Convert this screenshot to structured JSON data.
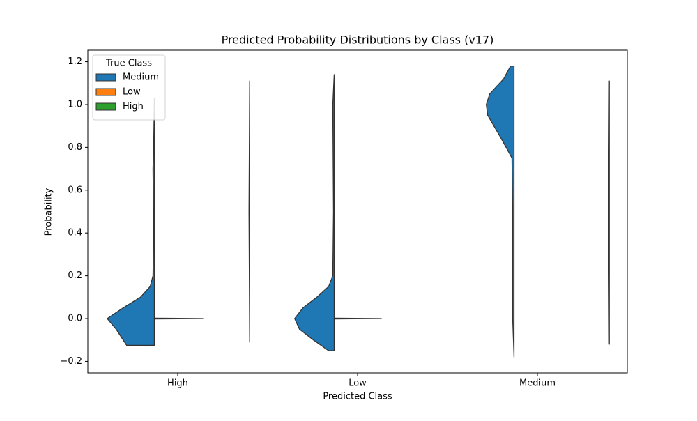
{
  "chart_data": {
    "type": "violin",
    "title": "Predicted Probability Distributions by Class (v17)",
    "xlabel": "Predicted Class",
    "ylabel": "Probability",
    "categories": [
      "High",
      "Low",
      "Medium"
    ],
    "ylim": [
      -0.254,
      1.254
    ],
    "yticks": [
      {
        "value": -0.2,
        "label": "−0.2"
      },
      {
        "value": 0,
        "label": "0.0"
      },
      {
        "value": 0.2,
        "label": "0.2"
      },
      {
        "value": 0.4,
        "label": "0.4"
      },
      {
        "value": 0.6,
        "label": "0.6"
      },
      {
        "value": 0.8,
        "label": "0.8"
      },
      {
        "value": 1,
        "label": "1.0"
      },
      {
        "value": 1.2,
        "label": "1.2"
      }
    ],
    "legend_title": "True Class",
    "legend": "upper left",
    "split": true,
    "series": [
      {
        "name": "Medium",
        "color": "#1f77b4",
        "values": [
          {
            "y": [
              -0.125,
              -0.05,
              0,
              0.05,
              0.1,
              0.15,
              0.2,
              0.4,
              0.7,
              0.8,
              1.03
            ],
            "density": [
              40,
              55,
              68,
              45,
              20,
              6,
              2,
              1,
              2,
              1,
              0
            ]
          },
          {
            "y": [
              -0.15,
              -0.1,
              -0.05,
              0,
              0.05,
              0.1,
              0.15,
              0.2,
              0.5,
              1.0,
              1.14
            ],
            "density": [
              8,
              30,
              50,
              57,
              45,
              25,
              8,
              2,
              1,
              2,
              0
            ]
          },
          {
            "y": [
              -0.18,
              0,
              0.5,
              0.75,
              0.85,
              0.95,
              1.0,
              1.05,
              1.12,
              1.18
            ],
            "density": [
              0,
              2,
              2,
              3,
              20,
              38,
              40,
              35,
              15,
              5
            ]
          }
        ]
      },
      {
        "name": "Low",
        "color": "#ff7f0e",
        "values": [
          {
            "y": [
              -0.002,
              0,
              0.002
            ],
            "density": [
              0,
              70,
              0
            ]
          },
          {
            "y": [
              -0.002,
              0,
              0.002
            ],
            "density": [
              0,
              68,
              0
            ]
          },
          null
        ]
      },
      {
        "name": "High",
        "color": "#2ca02c",
        "values": [
          {
            "y": [
              -0.11,
              0.5,
              1.11
            ],
            "density": [
              0,
              1,
              0
            ]
          },
          null,
          {
            "y": [
              -0.12,
              0.5,
              1.11
            ],
            "density": [
              0,
              1,
              0
            ]
          }
        ]
      }
    ]
  }
}
